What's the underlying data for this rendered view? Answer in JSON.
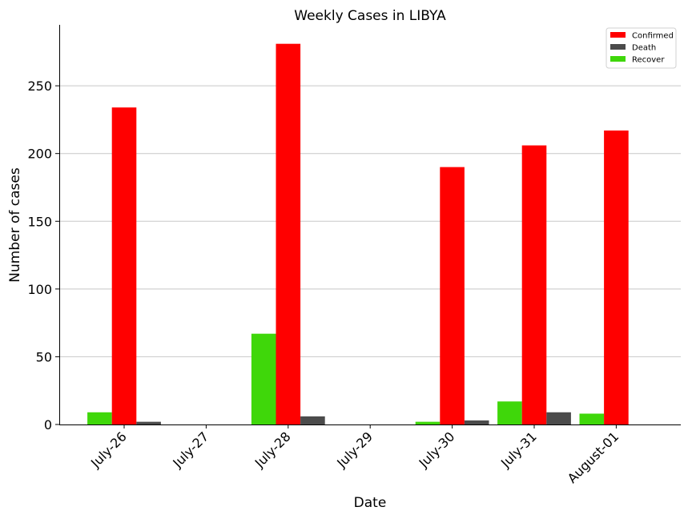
{
  "chart_data": {
    "type": "bar",
    "title": "Weekly Cases in LIBYA",
    "xlabel": "Date",
    "ylabel": "Number of cases",
    "categories": [
      "July-26",
      "July-27",
      "July-28",
      "July-29",
      "July-30",
      "July-31",
      "August-01"
    ],
    "series": [
      {
        "name": "Recover",
        "color": "#3fd70a",
        "values": [
          9,
          0,
          67,
          0,
          2,
          17,
          8
        ]
      },
      {
        "name": "Confirmed",
        "color": "#ff0000",
        "values": [
          234,
          0,
          281,
          0,
          190,
          206,
          217
        ]
      },
      {
        "name": "Death",
        "color": "#4b4b4b",
        "values": [
          2,
          0,
          6,
          0,
          3,
          9,
          0
        ]
      }
    ],
    "legend_order": [
      "Confirmed",
      "Death",
      "Recover"
    ],
    "legend_position": "top-right",
    "yticks": [
      0,
      50,
      100,
      150,
      200,
      250
    ],
    "ylim": [
      0,
      295
    ],
    "grid": "horizontal"
  }
}
